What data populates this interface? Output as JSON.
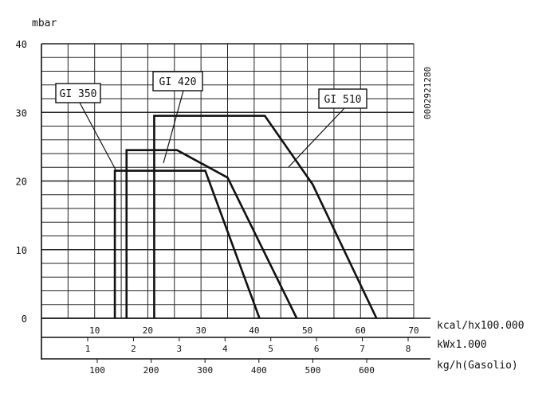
{
  "chart_data": {
    "type": "line",
    "ylabel": "mbar",
    "ylim": [
      0,
      40
    ],
    "yticks": [
      0,
      10,
      20,
      30,
      40
    ],
    "grid": true,
    "code": "0002921280",
    "axes": [
      {
        "label": "kcal/hx100.000",
        "range": [
          0,
          70
        ],
        "ticks": [
          10,
          20,
          30,
          40,
          50,
          60,
          70
        ]
      },
      {
        "label": "kWx1.000",
        "ticks": [
          1,
          2,
          3,
          4,
          5,
          6,
          7,
          8
        ]
      },
      {
        "label": "kg/h(Gasolio)",
        "ticks": [
          100,
          200,
          300,
          400,
          500,
          600
        ]
      }
    ],
    "series": [
      {
        "name": "GI 350",
        "points": [
          [
            13.8,
            0
          ],
          [
            13.8,
            21.5
          ],
          [
            30.8,
            21.5
          ],
          [
            41,
            0
          ]
        ]
      },
      {
        "name": "GI 420",
        "points": [
          [
            16,
            0
          ],
          [
            16,
            24.5
          ],
          [
            25.5,
            24.5
          ],
          [
            35,
            20.5
          ],
          [
            48,
            0
          ]
        ]
      },
      {
        "name": "GI 510",
        "points": [
          [
            21.2,
            0
          ],
          [
            21.2,
            29.5
          ],
          [
            42,
            29.5
          ],
          [
            51,
            19.5
          ],
          [
            63,
            0
          ]
        ]
      }
    ]
  }
}
